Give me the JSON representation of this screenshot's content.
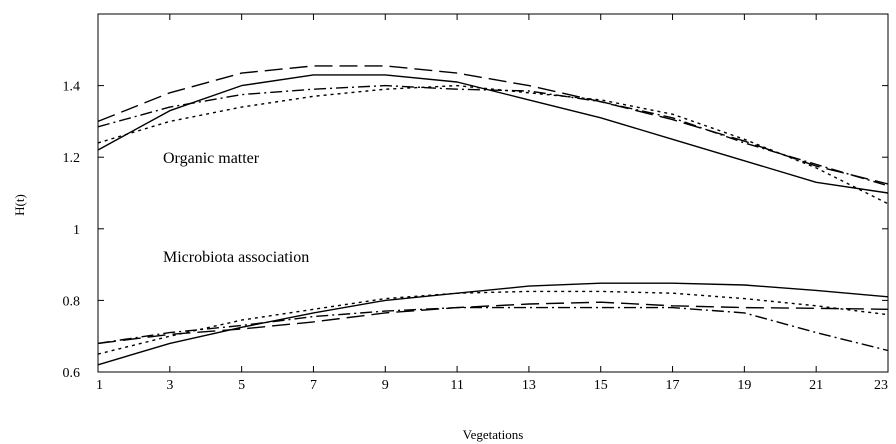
{
  "chart_data": {
    "type": "line",
    "title": "",
    "xlabel": "Vegetations",
    "ylabel": "H(t)",
    "xlim": [
      1,
      23
    ],
    "ylim": [
      0.6,
      1.6
    ],
    "xticks": [
      1,
      3,
      5,
      7,
      9,
      11,
      13,
      15,
      17,
      19,
      21,
      23
    ],
    "yticks": [
      0.6,
      0.8,
      1,
      1.2,
      1.4
    ],
    "ytick_labels": [
      "0.6",
      "0.8",
      "1",
      "1.2",
      "1.4"
    ],
    "grid": false,
    "legend": "none",
    "annotations": [
      {
        "text": "Organic matter"
      },
      {
        "text": "Microbiota association"
      }
    ],
    "series": [
      {
        "group": "organic",
        "style": "solid",
        "x": [
          1,
          3,
          5,
          7,
          9,
          11,
          13,
          15,
          17,
          19,
          21,
          23
        ],
        "y": [
          1.22,
          1.33,
          1.4,
          1.43,
          1.43,
          1.41,
          1.36,
          1.31,
          1.25,
          1.19,
          1.13,
          1.1
        ]
      },
      {
        "group": "organic",
        "style": "long-dash",
        "x": [
          1,
          3,
          5,
          7,
          9,
          11,
          13,
          15,
          17,
          19,
          21,
          23
        ],
        "y": [
          1.3,
          1.38,
          1.435,
          1.455,
          1.455,
          1.435,
          1.4,
          1.355,
          1.305,
          1.245,
          1.175,
          1.125
        ]
      },
      {
        "group": "organic",
        "style": "dash-dot",
        "x": [
          1,
          3,
          5,
          7,
          9,
          11,
          13,
          15,
          17,
          19,
          21,
          23
        ],
        "y": [
          1.285,
          1.34,
          1.375,
          1.39,
          1.4,
          1.39,
          1.385,
          1.355,
          1.31,
          1.24,
          1.18,
          1.12
        ]
      },
      {
        "group": "organic",
        "style": "dotted",
        "x": [
          1,
          3,
          5,
          7,
          9,
          11,
          13,
          15,
          17,
          19,
          21,
          23
        ],
        "y": [
          1.24,
          1.3,
          1.34,
          1.37,
          1.39,
          1.4,
          1.38,
          1.36,
          1.32,
          1.25,
          1.17,
          1.07
        ]
      },
      {
        "group": "microbiota",
        "style": "solid",
        "x": [
          1,
          3,
          5,
          7,
          9,
          11,
          13,
          15,
          17,
          19,
          21,
          23
        ],
        "y": [
          0.62,
          0.68,
          0.725,
          0.765,
          0.8,
          0.82,
          0.84,
          0.848,
          0.848,
          0.843,
          0.828,
          0.81
        ]
      },
      {
        "group": "microbiota",
        "style": "long-dash",
        "x": [
          1,
          3,
          5,
          7,
          9,
          11,
          13,
          15,
          17,
          19,
          21,
          23
        ],
        "y": [
          0.68,
          0.705,
          0.72,
          0.74,
          0.765,
          0.78,
          0.79,
          0.795,
          0.785,
          0.78,
          0.778,
          0.775
        ]
      },
      {
        "group": "microbiota",
        "style": "dash-dot",
        "x": [
          1,
          3,
          5,
          7,
          9,
          11,
          13,
          15,
          17,
          19,
          21,
          23
        ],
        "y": [
          0.68,
          0.71,
          0.73,
          0.755,
          0.77,
          0.78,
          0.78,
          0.78,
          0.78,
          0.765,
          0.71,
          0.66
        ]
      },
      {
        "group": "microbiota",
        "style": "dotted",
        "x": [
          1,
          3,
          5,
          7,
          9,
          11,
          13,
          15,
          17,
          19,
          21,
          23
        ],
        "y": [
          0.65,
          0.7,
          0.745,
          0.775,
          0.805,
          0.82,
          0.825,
          0.825,
          0.82,
          0.805,
          0.785,
          0.76
        ]
      }
    ]
  }
}
